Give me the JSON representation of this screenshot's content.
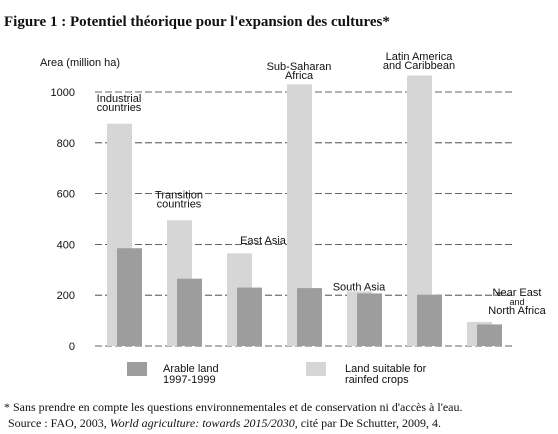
{
  "chart_data": {
    "type": "bar",
    "title": "Figure 1 : Potentiel théorique pour l'expansion des cultures*",
    "y_label": "Area (million ha)",
    "categories": [
      [
        "Industrial",
        "countries"
      ],
      [
        "Transition",
        "countries"
      ],
      [
        "East Asia"
      ],
      [
        "Sub-Saharan",
        "Africa"
      ],
      [
        "South Asia"
      ],
      [
        "Latin America",
        "and Caribbean"
      ],
      [
        "Near East",
        "and",
        "North Africa"
      ]
    ],
    "series": [
      {
        "name": [
          "Arable land",
          "1997-1999"
        ],
        "color": "#9d9d9d",
        "values": [
          385,
          265,
          230,
          228,
          207,
          202,
          85
        ]
      },
      {
        "name": [
          "Land suitable for",
          "rainfed crops"
        ],
        "color": "#d6d6d6",
        "values": [
          875,
          495,
          365,
          1030,
          215,
          1065,
          95
        ]
      }
    ],
    "ylim": [
      0,
      1000
    ],
    "yticks": [
      0,
      200,
      400,
      600,
      800,
      1000
    ],
    "grid": true,
    "footnote": "* Sans prendre en compte les questions environnementales et de conservation ni d'accès à l'eau.",
    "source": [
      "Source : FAO, 2003, ",
      "World agriculture: towards 2015/2030",
      ", cité par De Schutter, 2009, 4."
    ]
  }
}
